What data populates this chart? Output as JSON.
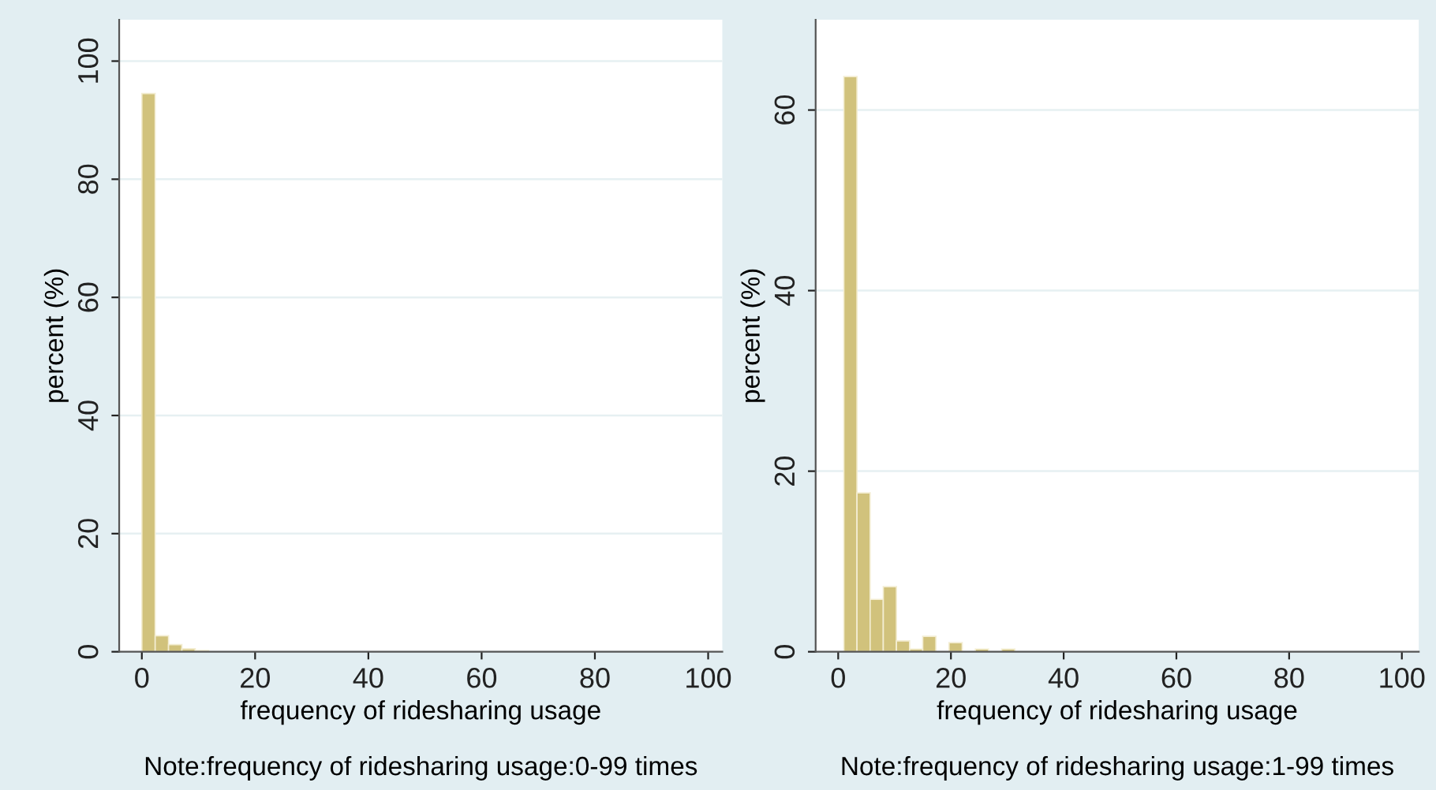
{
  "chart_data": [
    {
      "type": "histogram",
      "xlabel": "frequency of ridesharing usage",
      "ylabel": "percent (%)",
      "annotations": [
        "Note:frequency of ridesharing usage:0-99 times"
      ],
      "color": "#d1c27c",
      "bins": [
        0,
        2.357,
        4.714,
        7.071,
        9.429,
        11.786,
        14.143,
        16.5,
        18.857,
        21.214,
        23.571,
        25.929,
        28.286,
        30.643,
        33,
        35.357,
        37.714,
        40.071,
        42.429,
        44.786,
        47.143,
        49.5,
        51.857,
        54.214,
        56.571,
        58.929,
        61.286,
        63.643,
        66,
        68.357,
        70.714,
        73.071,
        75.429,
        77.786,
        80.143,
        82.5,
        84.857,
        87.214,
        89.571,
        91.929,
        94.286,
        96.643,
        99
      ],
      "values": [
        94.5,
        2.7,
        1.2,
        0.5,
        0.2,
        0,
        0,
        0,
        0,
        0,
        0,
        0,
        0,
        0,
        0,
        0,
        0,
        0,
        0,
        0,
        0,
        0,
        0,
        0,
        0,
        0,
        0,
        0,
        0,
        0,
        0,
        0,
        0,
        0,
        0,
        0,
        0,
        0,
        0,
        0,
        0,
        0
      ],
      "xlim": [
        -4,
        102.5
      ],
      "ylim": [
        0,
        107
      ],
      "xticks": [
        0,
        20,
        40,
        60,
        80,
        100
      ],
      "yticks": [
        0,
        20,
        40,
        60,
        80,
        100
      ],
      "grid": "y"
    },
    {
      "type": "histogram",
      "xlabel": "frequency of ridesharing usage",
      "ylabel": "percent (%)",
      "annotations": [
        "Note:frequency of ridesharing usage:1-99 times"
      ],
      "color": "#d1c27c",
      "bins": [
        1,
        3.333,
        5.667,
        8,
        10.333,
        12.667,
        15,
        17.333,
        19.667,
        22,
        24.333,
        26.667,
        29,
        31.333,
        33.667,
        36,
        38.333,
        40.667,
        43,
        45.333,
        47.667,
        50,
        52.333,
        54.667,
        57,
        59.333,
        61.667,
        64,
        66.333,
        68.667,
        71,
        73.333,
        75.667,
        78,
        80.333,
        82.667,
        85,
        87.333,
        89.667,
        92,
        94.333,
        96.667,
        99
      ],
      "values": [
        63.7,
        17.6,
        5.8,
        7.2,
        1.2,
        0.3,
        1.7,
        0,
        1.0,
        0,
        0.3,
        0,
        0.3,
        0,
        0,
        0,
        0,
        0,
        0,
        0,
        0,
        0,
        0,
        0,
        0,
        0,
        0,
        0,
        0,
        0,
        0,
        0,
        0,
        0,
        0,
        0,
        0,
        0,
        0,
        0,
        0,
        0
      ],
      "xlim": [
        -4,
        103
      ],
      "ylim": [
        0,
        70
      ],
      "xticks": [
        0,
        20,
        40,
        60,
        80,
        100
      ],
      "yticks": [
        0,
        20,
        40,
        60
      ],
      "grid": "y"
    }
  ]
}
